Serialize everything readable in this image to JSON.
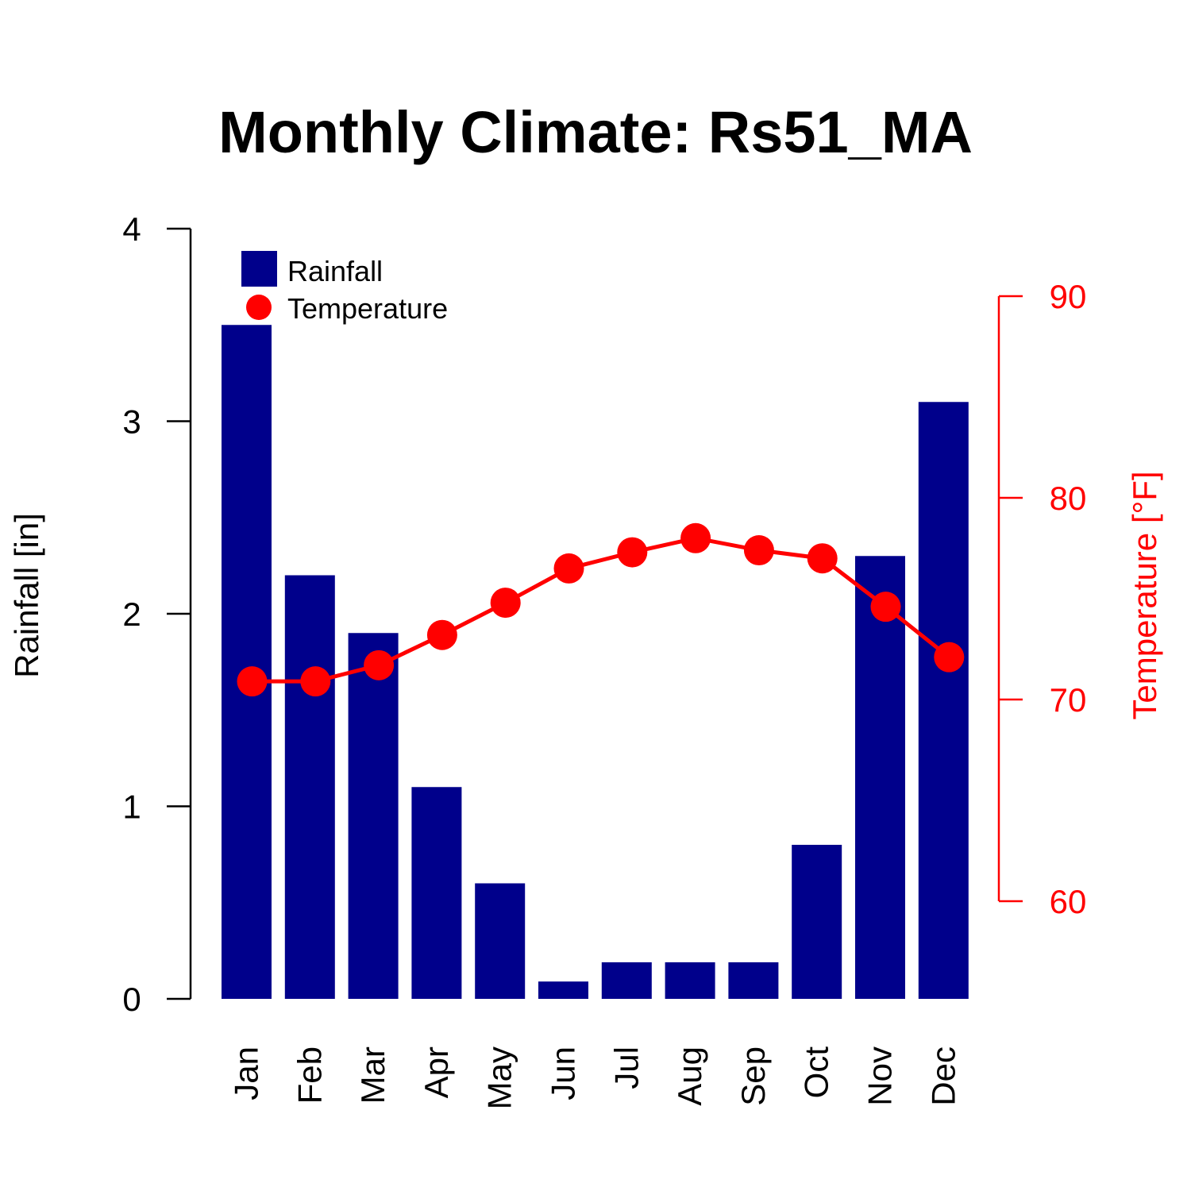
{
  "chart_data": {
    "type": "bar",
    "title": "Monthly Climate: Rs51_MA",
    "categories": [
      "Jan",
      "Feb",
      "Mar",
      "Apr",
      "May",
      "Jun",
      "Jul",
      "Aug",
      "Sep",
      "Oct",
      "Nov",
      "Dec"
    ],
    "series": [
      {
        "name": "Rainfall",
        "type": "bar",
        "axis": "left",
        "color": "#00008B",
        "values": [
          3.5,
          2.2,
          1.9,
          1.1,
          0.6,
          0.09,
          0.19,
          0.19,
          0.19,
          0.8,
          2.3,
          3.1
        ]
      },
      {
        "name": "Temperature",
        "type": "line",
        "axis": "right",
        "color": "#FF0000",
        "values": [
          70.9,
          70.9,
          71.7,
          73.2,
          74.8,
          76.5,
          77.3,
          78.0,
          77.4,
          77.0,
          74.6,
          72.1
        ]
      }
    ],
    "ylabel": "Rainfall [in]",
    "ylim": [
      0,
      4
    ],
    "yticks": [
      "0",
      "1",
      "2",
      "3",
      "4"
    ],
    "y2label": "Temperature [°F]",
    "y2lim": [
      60,
      90
    ],
    "y2ticks": [
      "60",
      "70",
      "80",
      "90"
    ],
    "legend_position": "top-left",
    "grid": false
  }
}
